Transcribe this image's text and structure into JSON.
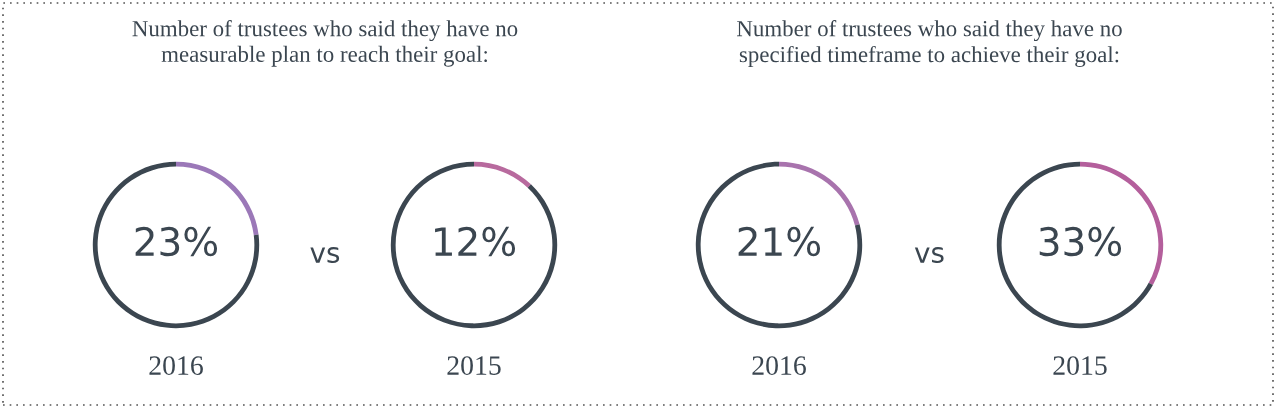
{
  "chart_data": [
    {
      "type": "donut",
      "title": "Number of trustees who said they have no measurable plan to reach their goal:",
      "categories": [
        null,
        null
      ],
      "values": [
        23,
        77
      ],
      "colors": [
        "#9b78b8",
        "#3b4650"
      ],
      "value_labels": [
        "23%",
        null
      ],
      "xlabel": "2016",
      "annotations": [
        "vs"
      ]
    },
    {
      "type": "donut",
      "categories": [
        null,
        null
      ],
      "values": [
        12,
        88
      ],
      "colors": [
        "#b86a9e",
        "#3b4650"
      ],
      "value_labels": [
        "12%",
        null
      ],
      "xlabel": "2015"
    },
    {
      "type": "donut",
      "title": "Number of trustees who said they have no specified timeframe to achieve their goal:",
      "categories": [
        null,
        null
      ],
      "values": [
        21,
        79
      ],
      "colors": [
        "#a873ad",
        "#3b4650"
      ],
      "value_labels": [
        "21%",
        null
      ],
      "xlabel": "2016",
      "annotations": [
        "vs"
      ]
    },
    {
      "type": "donut",
      "categories": [
        null,
        null
      ],
      "values": [
        33,
        67
      ],
      "colors": [
        "#b45f9c",
        "#3b4650"
      ],
      "value_labels": [
        "33%",
        null
      ],
      "xlabel": "2015"
    }
  ]
}
